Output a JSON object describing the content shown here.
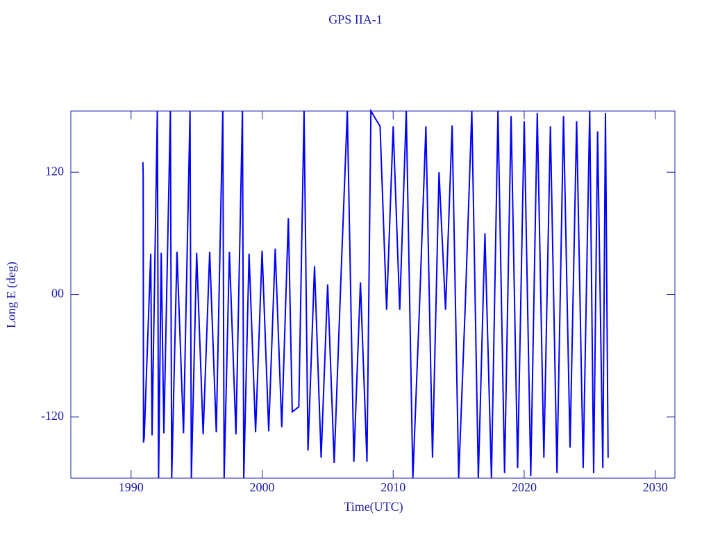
{
  "chart_data": {
    "type": "line",
    "title": "GPS IIA-1",
    "x_label": "Time(UTC)",
    "y_label": "Long E (deg)",
    "xlim": [
      1985.4,
      2031.5
    ],
    "xticks": [
      1990,
      2000,
      2010,
      2020,
      2030
    ],
    "ylim": [
      -180,
      180
    ],
    "yticks": [
      -120,
      {
        "value": 0,
        "label": "00"
      },
      120
    ],
    "series": [
      {
        "name": "GPS IIA-1",
        "color": "#0000ff",
        "x": [
          1990.9,
          1990.92,
          1990.95,
          1991.0,
          1991.5,
          1991.6,
          1992.0,
          1992.1,
          1992.3,
          1992.5,
          1993.0,
          1993.1,
          1993.5,
          1994.0,
          1994.5,
          1994.6,
          1995.0,
          1995.5,
          1996.0,
          1996.5,
          1997.0,
          1997.1,
          1997.5,
          1998.0,
          1998.5,
          1998.6,
          1999.0,
          1999.5,
          2000.0,
          2000.5,
          2001.0,
          2001.5,
          2002.0,
          2002.3,
          2002.8,
          2003.2,
          2003.5,
          2004.0,
          2004.5,
          2005.0,
          2005.5,
          2006.0,
          2006.5,
          2007.0,
          2007.5,
          2008.0,
          2008.3,
          2009.0,
          2009.5,
          2010.0,
          2010.5,
          2011.0,
          2011.5,
          2012.0,
          2012.5,
          2013.0,
          2013.5,
          2014.0,
          2014.5,
          2015.0,
          2015.5,
          2016.0,
          2016.5,
          2017.0,
          2017.5,
          2018.0,
          2018.5,
          2019.0,
          2019.5,
          2020.0,
          2020.5,
          2021.0,
          2021.5,
          2022.0,
          2022.5,
          2023.0,
          2023.5,
          2024.0,
          2024.5,
          2025.0,
          2025.3,
          2025.6,
          2026.0,
          2026.2,
          2026.4
        ],
        "values": [
          130,
          115,
          -145,
          -140,
          40,
          -138,
          180,
          -180,
          41,
          -136,
          180,
          -180,
          42,
          -136,
          180,
          -180,
          41,
          -137,
          42,
          -135,
          180,
          -180,
          42,
          -137,
          180,
          -180,
          40,
          -135,
          43,
          -134,
          45,
          -130,
          75,
          -115,
          -110,
          180,
          -153,
          28,
          -160,
          10,
          -165,
          12,
          180,
          -164,
          12,
          -164,
          180,
          165,
          -15,
          165,
          -15,
          180,
          -180,
          -15,
          165,
          -160,
          120,
          -15,
          166,
          -180,
          -12,
          180,
          -180,
          60,
          -180,
          180,
          -175,
          175,
          -170,
          170,
          -178,
          178,
          -160,
          165,
          -175,
          175,
          -150,
          170,
          -170,
          180,
          -175,
          160,
          -170,
          178,
          -160
        ]
      }
    ]
  }
}
